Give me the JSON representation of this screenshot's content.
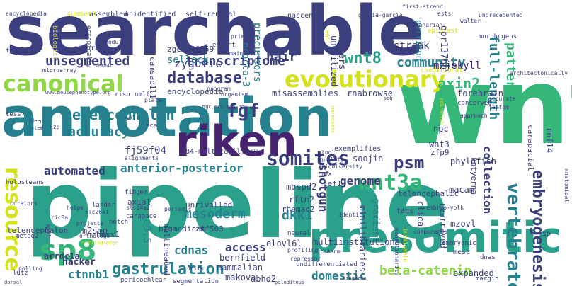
{
  "colors": {
    "background": "#ffffff",
    "navy": "#3b3f7d",
    "purple": "#46226f",
    "teal": "#26808e",
    "aqua": "#2ba08a",
    "green": "#35b779",
    "lime": "#8fd744",
    "yellow": "#d4e21a",
    "gray": "#4d5a8c"
  },
  "words": [
    "searchable",
    "wnt",
    "pipeline",
    "annotation",
    "presomitic",
    "riken",
    "resource",
    "canonical",
    "evolutionary",
    "sp8",
    "wnt3a",
    "somites",
    "vertebrate",
    "embryogenesis",
    "database",
    "telencephalon",
    "psm",
    "gastrulation",
    "unsegmented",
    "transcriptome",
    "wnt8",
    "hair",
    "community",
    "full-length",
    "patterning",
    "axin2",
    "fgf",
    "accuracy",
    "fj59f04",
    "automated",
    "anterior-posterior",
    "mesoderm",
    "dkk1",
    "shotgun",
    "genome",
    "beta-catenin",
    "access",
    "cdnas",
    "ctnnb1",
    "arrdc1a",
    "hacker",
    "domestic",
    "collection",
    "mzjekyll",
    "gpr137bb",
    "perrimon",
    "wranglers",
    "streak",
    "unutilized",
    "zygotic",
    "selleck",
    "camsap1l1",
    "ncgcca-3",
    "precursors",
    "zgc:136359",
    "forebrain",
    "rnabrowse",
    "misassemblies",
    "encyclopedia",
    "npc",
    "wnt3",
    "zfp9",
    "soojin",
    "phylofish",
    "katyerna",
    "telencephalic",
    "macam",
    "lef1",
    "mospd2",
    "rftn2",
    "rhemac2",
    "clica",
    "gradient",
    "minilibraries",
    "rearrayed",
    "mzovl",
    "expanded",
    "multiinstitutional",
    "elovl6l",
    "bernfield",
    "mammalian",
    "makova",
    "abhd2",
    "e9.5",
    "m2smo",
    "znf503",
    "hesx1",
    "multiheaded",
    "rnf14",
    "carapacial",
    "biomedical",
    "axial",
    "unrivalled",
    "tcf/lef",
    "rigorous",
    "microarray",
    "biologist",
    "ectopically",
    "modular",
    "maintains",
    "primates",
    "effort",
    "nascent",
    "self-renewal",
    "unidentified",
    "assembled",
    "summers",
    "encyclopedia",
    "garcia-garcia",
    "morphogens",
    "zn",
    "read",
    "first-strand",
    "planarian",
    "epiblast",
    "unprecedented",
    "conditional",
    "conserved",
    "architectonically",
    "accurate",
    "fantom",
    "approach",
    "tess",
    "ovl",
    "hcs",
    "kzp",
    "riso",
    "nmlf",
    "plate",
    "organism",
    "program",
    "www.mousephenotype.org",
    "mgc.nci.nih.gov",
    "stem",
    "deep",
    "sema4c",
    "384-multicapillary",
    "alignments",
    "holosteans",
    "finger",
    "lander",
    "slc14a2",
    "slc26a1",
    "periodic",
    "carapace",
    "notch",
    "projects",
    "orthologs",
    "telencephalon",
    "ric8a",
    "sp51",
    "curators",
    "helps",
    "polling",
    "lutz",
    "pericochlear",
    "segmentation",
    "kingdoms",
    "mesc",
    "embryonic",
    "components",
    "undifferentiated",
    "ectoderm",
    "repressor",
    "profiling",
    "neural",
    "tool",
    "quality",
    "biodiversity",
    "rfx",
    "exemplifies",
    "tags",
    "invaluable",
    "evolutionarily",
    "identity",
    "dnas",
    "sp",
    "units",
    "embryo-yolk",
    "anatomical",
    "margin",
    "dorsal",
    "peloditous",
    "ssh",
    "ests",
    "marmosets",
    "zebrafish",
    "cutting-edge",
    "walter",
    "metag2",
    "xlca"
  ]
}
